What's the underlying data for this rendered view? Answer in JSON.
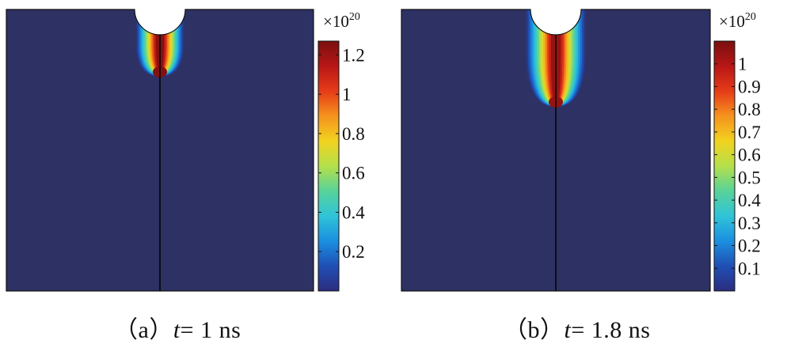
{
  "figure": {
    "background_color": "#2e3163",
    "colormap": [
      "#2c2d7f",
      "#1f4fb4",
      "#1b8fe0",
      "#2fc4d8",
      "#58d29a",
      "#b4e04a",
      "#f2d21f",
      "#f5931e",
      "#e63c18",
      "#b81616",
      "#7a1010"
    ],
    "panels": [
      {
        "caption": {
          "prefix": "（a）",
          "var": "t",
          "rest": "= 1 ns"
        },
        "colorbar": {
          "multiplier_base": "×10",
          "multiplier_exp": "20",
          "min": 0.0,
          "max": 1.27,
          "ticks": [
            {
              "value": 0.2,
              "label": "0.2"
            },
            {
              "value": 0.4,
              "label": "0.4"
            },
            {
              "value": 0.6,
              "label": "0.6"
            },
            {
              "value": 0.8,
              "label": "0.8"
            },
            {
              "value": 1.0,
              "label": "1"
            },
            {
              "value": 1.2,
              "label": "1.2"
            }
          ]
        },
        "plume": {
          "peak": 1.25,
          "spread": 0.8
        }
      },
      {
        "caption": {
          "prefix": "（b）",
          "var": "t",
          "rest": "= 1.8 ns"
        },
        "colorbar": {
          "multiplier_base": "×10",
          "multiplier_exp": "20",
          "min": 0.0,
          "max": 1.1,
          "ticks": [
            {
              "value": 0.1,
              "label": "0.1"
            },
            {
              "value": 0.2,
              "label": "0.2"
            },
            {
              "value": 0.3,
              "label": "0.3"
            },
            {
              "value": 0.4,
              "label": "0.4"
            },
            {
              "value": 0.5,
              "label": "0.5"
            },
            {
              "value": 0.6,
              "label": "0.6"
            },
            {
              "value": 0.7,
              "label": "0.7"
            },
            {
              "value": 0.8,
              "label": "0.8"
            },
            {
              "value": 0.9,
              "label": "0.9"
            },
            {
              "value": 1.0,
              "label": "1"
            }
          ]
        },
        "plume": {
          "peak": 1.05,
          "spread": 1.0
        }
      }
    ]
  }
}
